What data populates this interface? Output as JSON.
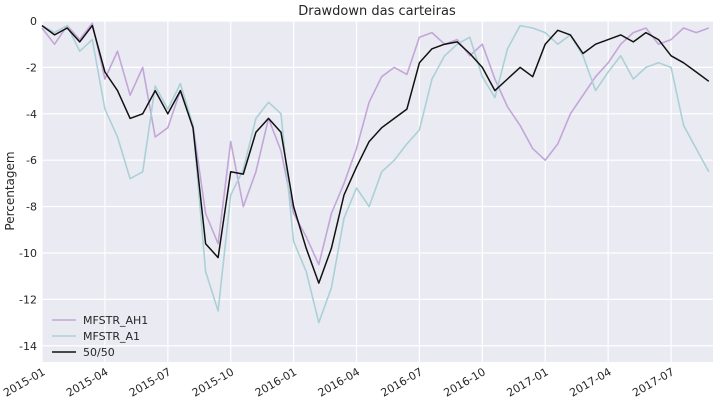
{
  "chart_data": {
    "type": "line",
    "title": "Drawdown das carteiras",
    "ylabel": "Percentagem",
    "xlabel": "",
    "ylim": [
      -14.7,
      0
    ],
    "yticks": [
      0,
      -2,
      -4,
      -6,
      -8,
      -10,
      -12,
      -14
    ],
    "x_start": "2015-01",
    "x_end": "2017-09",
    "xticks": [
      "2015-01",
      "2015-04",
      "2015-07",
      "2015-10",
      "2016-01",
      "2016-04",
      "2016-07",
      "2016-10",
      "2017-01",
      "2017-04",
      "2017-07"
    ],
    "legend_position": "lower-left",
    "grid": true,
    "x": [
      2015.0,
      2015.05,
      2015.1,
      2015.15,
      2015.2,
      2015.25,
      2015.3,
      2015.35,
      2015.4,
      2015.45,
      2015.5,
      2015.55,
      2015.6,
      2015.65,
      2015.7,
      2015.75,
      2015.8,
      2015.85,
      2015.9,
      2015.95,
      2016.0,
      2016.05,
      2016.1,
      2016.15,
      2016.2,
      2016.25,
      2016.3,
      2016.35,
      2016.4,
      2016.45,
      2016.5,
      2016.55,
      2016.6,
      2016.65,
      2016.7,
      2016.75,
      2016.8,
      2016.85,
      2016.9,
      2016.95,
      2017.0,
      2017.05,
      2017.1,
      2017.15,
      2017.2,
      2017.25,
      2017.3,
      2017.35,
      2017.4,
      2017.45,
      2017.5,
      2017.55,
      2017.6,
      2017.65
    ],
    "series": [
      {
        "name": "MFSTR_AH1",
        "color": "#c3a6d8",
        "values": [
          -0.3,
          -1.0,
          -0.2,
          -0.8,
          -0.1,
          -2.5,
          -1.3,
          -3.2,
          -2.0,
          -5.0,
          -4.6,
          -3.0,
          -4.5,
          -8.3,
          -9.6,
          -5.2,
          -8.0,
          -6.5,
          -4.2,
          -5.6,
          -8.3,
          -9.3,
          -10.5,
          -8.3,
          -7.0,
          -5.5,
          -3.5,
          -2.4,
          -2.0,
          -2.3,
          -0.7,
          -0.5,
          -1.0,
          -0.8,
          -1.5,
          -1.0,
          -2.5,
          -3.7,
          -4.5,
          -5.5,
          -6.0,
          -5.3,
          -4.0,
          -3.2,
          -2.4,
          -1.8,
          -1.0,
          -0.5,
          -0.3,
          -1.0,
          -0.8,
          -0.3,
          -0.5,
          -0.3
        ]
      },
      {
        "name": "MFSTR_A1",
        "color": "#aad1d6",
        "values": [
          -0.2,
          -0.5,
          -0.2,
          -1.3,
          -0.8,
          -3.8,
          -5.0,
          -6.8,
          -6.5,
          -2.8,
          -3.8,
          -2.7,
          -4.5,
          -10.8,
          -12.5,
          -7.5,
          -6.4,
          -4.2,
          -3.5,
          -4.0,
          -9.5,
          -10.8,
          -13.0,
          -11.5,
          -8.5,
          -7.2,
          -8.0,
          -6.5,
          -6.0,
          -5.3,
          -4.7,
          -2.5,
          -1.5,
          -1.0,
          -0.7,
          -2.4,
          -3.3,
          -1.2,
          -0.2,
          -0.3,
          -0.5,
          -1.0,
          -0.6,
          -1.5,
          -3.0,
          -2.2,
          -1.5,
          -2.5,
          -2.0,
          -1.8,
          -2.0,
          -4.5,
          -5.5,
          -6.5
        ]
      },
      {
        "name": "50/50",
        "color": "#111111",
        "values": [
          -0.2,
          -0.6,
          -0.3,
          -0.9,
          -0.2,
          -2.2,
          -3.0,
          -4.2,
          -4.0,
          -3.0,
          -4.0,
          -3.0,
          -4.6,
          -9.6,
          -10.2,
          -6.5,
          -6.6,
          -4.8,
          -4.2,
          -4.8,
          -8.0,
          -9.8,
          -11.3,
          -9.8,
          -7.5,
          -6.3,
          -5.2,
          -4.6,
          -4.2,
          -3.8,
          -1.8,
          -1.2,
          -1.0,
          -0.9,
          -1.4,
          -2.0,
          -3.0,
          -2.5,
          -2.0,
          -2.4,
          -1.0,
          -0.4,
          -0.6,
          -1.4,
          -1.0,
          -0.8,
          -0.6,
          -0.9,
          -0.5,
          -0.8,
          -1.5,
          -1.8,
          -2.2,
          -2.6
        ]
      }
    ]
  }
}
